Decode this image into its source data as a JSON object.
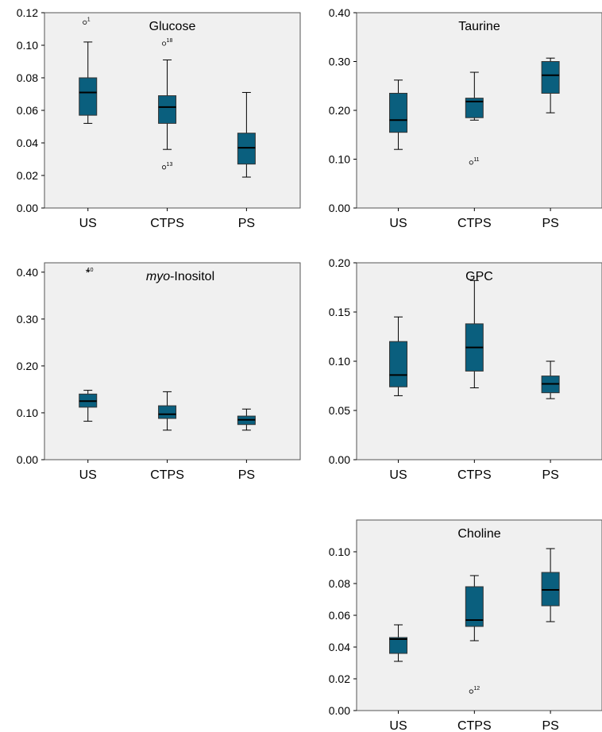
{
  "chart_data": [
    {
      "type": "box",
      "title": "Glucose",
      "title_italic_prefix": "",
      "categories": [
        "US",
        "CTPS",
        "PS"
      ],
      "ylim": [
        0,
        0.12
      ],
      "yticks": [
        "0.00",
        "0.02",
        "0.04",
        "0.06",
        "0.08",
        "0.10",
        "0.12"
      ],
      "grid": false,
      "boxes": [
        {
          "category": "US",
          "min": 0.052,
          "q1": 0.057,
          "median": 0.071,
          "q3": 0.08,
          "max": 0.102
        },
        {
          "category": "CTPS",
          "min": 0.036,
          "q1": 0.052,
          "median": 0.062,
          "q3": 0.069,
          "max": 0.091
        },
        {
          "category": "PS",
          "min": 0.019,
          "q1": 0.027,
          "median": 0.037,
          "q3": 0.046,
          "max": 0.071
        }
      ],
      "outliers": [
        {
          "category": "US",
          "value": 0.114,
          "label": "1",
          "marker": "circle"
        },
        {
          "category": "CTPS",
          "value": 0.101,
          "label": "18",
          "marker": "circle"
        },
        {
          "category": "CTPS",
          "value": 0.025,
          "label": "13",
          "marker": "circle"
        }
      ]
    },
    {
      "type": "box",
      "title": "Taurine",
      "title_italic_prefix": "",
      "categories": [
        "US",
        "CTPS",
        "PS"
      ],
      "ylim": [
        0,
        0.4
      ],
      "yticks": [
        "0.00",
        "0.10",
        "0.20",
        "0.30",
        "0.40"
      ],
      "grid": false,
      "boxes": [
        {
          "category": "US",
          "min": 0.12,
          "q1": 0.155,
          "median": 0.18,
          "q3": 0.235,
          "max": 0.262
        },
        {
          "category": "CTPS",
          "min": 0.18,
          "q1": 0.185,
          "median": 0.218,
          "q3": 0.225,
          "max": 0.278
        },
        {
          "category": "PS",
          "min": 0.195,
          "q1": 0.235,
          "median": 0.272,
          "q3": 0.3,
          "max": 0.307
        }
      ],
      "outliers": [
        {
          "category": "CTPS",
          "value": 0.093,
          "label": "11",
          "marker": "circle"
        }
      ]
    },
    {
      "type": "box",
      "title": "-Inositol",
      "title_italic_prefix": "myo",
      "categories": [
        "US",
        "CTPS",
        "PS"
      ],
      "ylim": [
        0,
        0.42
      ],
      "yticks": [
        "0.00",
        "0.10",
        "0.20",
        "0.30",
        "0.40"
      ],
      "grid": false,
      "boxes": [
        {
          "category": "US",
          "min": 0.082,
          "q1": 0.112,
          "median": 0.125,
          "q3": 0.14,
          "max": 0.148
        },
        {
          "category": "CTPS",
          "min": 0.063,
          "q1": 0.088,
          "median": 0.097,
          "q3": 0.115,
          "max": 0.145
        },
        {
          "category": "PS",
          "min": 0.063,
          "q1": 0.075,
          "median": 0.085,
          "q3": 0.093,
          "max": 0.108
        }
      ],
      "outliers": [
        {
          "category": "US",
          "value": 0.398,
          "label": "10",
          "marker": "star"
        }
      ]
    },
    {
      "type": "box",
      "title": "GPC",
      "title_italic_prefix": "",
      "categories": [
        "US",
        "CTPS",
        "PS"
      ],
      "ylim": [
        0,
        0.2
      ],
      "yticks": [
        "0.00",
        "0.05",
        "0.10",
        "0.15",
        "0.20"
      ],
      "grid": false,
      "boxes": [
        {
          "category": "US",
          "min": 0.065,
          "q1": 0.074,
          "median": 0.086,
          "q3": 0.12,
          "max": 0.145
        },
        {
          "category": "CTPS",
          "min": 0.073,
          "q1": 0.09,
          "median": 0.114,
          "q3": 0.138,
          "max": 0.182
        },
        {
          "category": "PS",
          "min": 0.062,
          "q1": 0.068,
          "median": 0.077,
          "q3": 0.085,
          "max": 0.1
        }
      ],
      "outliers": []
    },
    {
      "type": "box",
      "title": "Choline",
      "title_italic_prefix": "",
      "categories": [
        "US",
        "CTPS",
        "PS"
      ],
      "ylim": [
        0,
        0.12
      ],
      "yticks": [
        "0.00",
        "0.02",
        "0.04",
        "0.06",
        "0.08",
        "0.10"
      ],
      "grid": false,
      "boxes": [
        {
          "category": "US",
          "min": 0.031,
          "q1": 0.036,
          "median": 0.045,
          "q3": 0.046,
          "max": 0.054
        },
        {
          "category": "CTPS",
          "min": 0.044,
          "q1": 0.053,
          "median": 0.057,
          "q3": 0.078,
          "max": 0.085
        },
        {
          "category": "PS",
          "min": 0.056,
          "q1": 0.066,
          "median": 0.076,
          "q3": 0.087,
          "max": 0.102
        }
      ],
      "outliers": [
        {
          "category": "CTPS",
          "value": 0.012,
          "label": "12",
          "marker": "circle"
        }
      ]
    }
  ],
  "colors": {
    "box_fill": "#0a5f7e",
    "panel_bg": "#f0f0f0",
    "line": "#000000"
  }
}
